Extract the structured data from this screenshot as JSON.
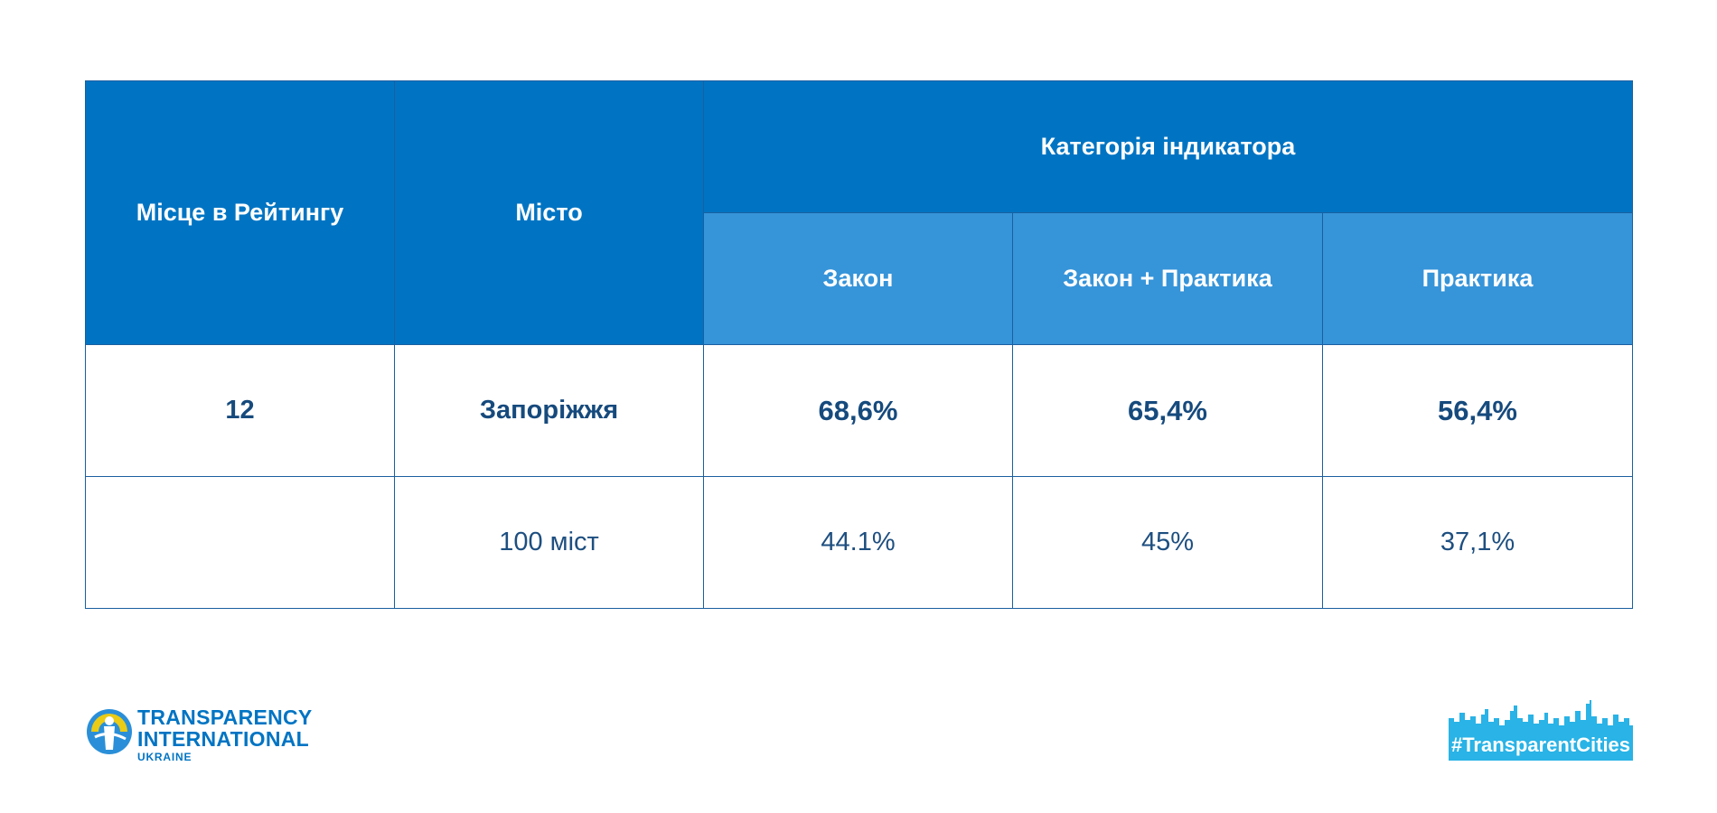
{
  "table": {
    "header": {
      "rank": "Місце в Рейтингу",
      "city": "Місто",
      "category": "Категорія індикатора",
      "sub": [
        "Закон",
        "Закон + Практика",
        "Практика"
      ]
    },
    "rows": [
      {
        "rank": "12",
        "city": "Запоріжжя",
        "values": [
          "68,6%",
          "65,4%",
          "56,4%"
        ]
      },
      {
        "rank": "",
        "city": "100 міст",
        "values": [
          "44.1%",
          "45%",
          "37,1%"
        ]
      }
    ]
  },
  "logos": {
    "ti": {
      "line1": "TRANSPARENCY",
      "line2": "INTERNATIONAL",
      "line3": "UKRAINE"
    },
    "tc": {
      "label": "#TransparentCities"
    }
  },
  "colors": {
    "header_dark": "#0074c3",
    "header_light": "#3694d9",
    "text_dark": "#164a7d",
    "border": "#1a5fa0",
    "tc_badge": "#29b3e6"
  }
}
